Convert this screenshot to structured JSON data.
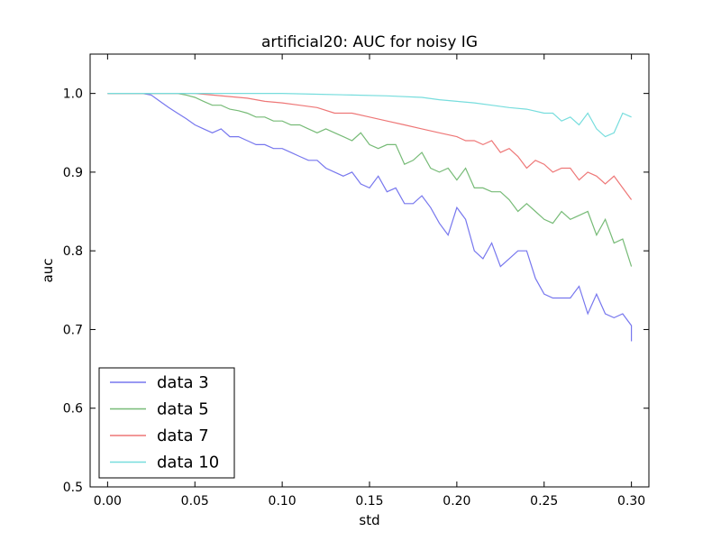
{
  "chart_data": {
    "type": "line",
    "title": "artificial20: AUC for noisy IG",
    "xlabel": "std",
    "ylabel": "auc",
    "xlim": [
      -0.01,
      0.31
    ],
    "ylim": [
      0.5,
      1.05
    ],
    "x_ticks": [
      0.0,
      0.05,
      0.1,
      0.15,
      0.2,
      0.25,
      0.3
    ],
    "x_tick_labels": [
      "0.00",
      "0.05",
      "0.10",
      "0.15",
      "0.20",
      "0.25",
      "0.30"
    ],
    "y_ticks": [
      0.5,
      0.6,
      0.7,
      0.8,
      0.9,
      1.0
    ],
    "y_tick_labels": [
      "0.5",
      "0.6",
      "0.7",
      "0.8",
      "0.9",
      "1.0"
    ],
    "grid": false,
    "legend_position": "lower-left",
    "series": [
      {
        "name": "data 3",
        "color": "#7777ee",
        "x": [
          0.0,
          0.01,
          0.02,
          0.025,
          0.03,
          0.035,
          0.04,
          0.045,
          0.05,
          0.055,
          0.06,
          0.065,
          0.07,
          0.075,
          0.08,
          0.085,
          0.09,
          0.095,
          0.1,
          0.105,
          0.11,
          0.115,
          0.12,
          0.125,
          0.13,
          0.135,
          0.14,
          0.145,
          0.15,
          0.155,
          0.16,
          0.165,
          0.17,
          0.175,
          0.18,
          0.185,
          0.19,
          0.195,
          0.2,
          0.205,
          0.21,
          0.215,
          0.22,
          0.225,
          0.23,
          0.235,
          0.24,
          0.245,
          0.25,
          0.255,
          0.26,
          0.265,
          0.27,
          0.275,
          0.28,
          0.285,
          0.29,
          0.295,
          0.3
        ],
        "y": [
          1.0,
          1.0,
          1.0,
          0.998,
          0.99,
          0.982,
          0.975,
          0.968,
          0.96,
          0.955,
          0.95,
          0.955,
          0.945,
          0.945,
          0.94,
          0.935,
          0.935,
          0.93,
          0.93,
          0.925,
          0.92,
          0.915,
          0.915,
          0.905,
          0.9,
          0.895,
          0.9,
          0.885,
          0.88,
          0.895,
          0.875,
          0.88,
          0.86,
          0.86,
          0.87,
          0.855,
          0.835,
          0.82,
          0.855,
          0.84,
          0.8,
          0.79,
          0.81,
          0.78,
          0.79,
          0.8,
          0.8,
          0.765,
          0.745,
          0.74,
          0.74,
          0.74,
          0.755,
          0.72,
          0.745,
          0.72,
          0.715,
          0.72,
          0.705
        ],
        "x_extra": [
          0.3
        ],
        "y_extra": [
          0.685
        ]
      },
      {
        "name": "data 5",
        "color": "#77bb77",
        "x": [
          0.0,
          0.01,
          0.02,
          0.03,
          0.04,
          0.045,
          0.05,
          0.055,
          0.06,
          0.065,
          0.07,
          0.075,
          0.08,
          0.085,
          0.09,
          0.095,
          0.1,
          0.105,
          0.11,
          0.115,
          0.12,
          0.125,
          0.13,
          0.135,
          0.14,
          0.145,
          0.15,
          0.155,
          0.16,
          0.165,
          0.17,
          0.175,
          0.18,
          0.185,
          0.19,
          0.195,
          0.2,
          0.205,
          0.21,
          0.215,
          0.22,
          0.225,
          0.23,
          0.235,
          0.24,
          0.245,
          0.25,
          0.255,
          0.26,
          0.265,
          0.27,
          0.275,
          0.28,
          0.285,
          0.29,
          0.295,
          0.3
        ],
        "y": [
          1.0,
          1.0,
          1.0,
          1.0,
          1.0,
          0.998,
          0.995,
          0.99,
          0.985,
          0.985,
          0.98,
          0.978,
          0.975,
          0.97,
          0.97,
          0.965,
          0.965,
          0.96,
          0.96,
          0.955,
          0.95,
          0.955,
          0.95,
          0.945,
          0.94,
          0.95,
          0.935,
          0.93,
          0.935,
          0.935,
          0.91,
          0.915,
          0.925,
          0.905,
          0.9,
          0.905,
          0.89,
          0.905,
          0.88,
          0.88,
          0.875,
          0.875,
          0.865,
          0.85,
          0.86,
          0.85,
          0.84,
          0.835,
          0.85,
          0.84,
          0.845,
          0.85,
          0.82,
          0.84,
          0.81,
          0.815,
          0.78
        ]
      },
      {
        "name": "data 7",
        "color": "#ee7777",
        "x": [
          0.0,
          0.01,
          0.02,
          0.03,
          0.04,
          0.05,
          0.055,
          0.06,
          0.07,
          0.08,
          0.09,
          0.1,
          0.11,
          0.12,
          0.13,
          0.14,
          0.15,
          0.16,
          0.17,
          0.18,
          0.19,
          0.2,
          0.205,
          0.21,
          0.215,
          0.22,
          0.225,
          0.23,
          0.235,
          0.24,
          0.245,
          0.25,
          0.255,
          0.26,
          0.265,
          0.27,
          0.275,
          0.28,
          0.285,
          0.29,
          0.295,
          0.3
        ],
        "y": [
          1.0,
          1.0,
          1.0,
          1.0,
          1.0,
          1.0,
          0.999,
          0.998,
          0.996,
          0.994,
          0.99,
          0.988,
          0.985,
          0.982,
          0.975,
          0.975,
          0.97,
          0.965,
          0.96,
          0.955,
          0.95,
          0.945,
          0.94,
          0.94,
          0.935,
          0.94,
          0.925,
          0.93,
          0.92,
          0.905,
          0.915,
          0.91,
          0.9,
          0.905,
          0.905,
          0.89,
          0.9,
          0.895,
          0.885,
          0.895,
          0.88,
          0.865
        ]
      },
      {
        "name": "data 10",
        "color": "#77dddd",
        "x": [
          0.0,
          0.02,
          0.04,
          0.06,
          0.08,
          0.1,
          0.12,
          0.14,
          0.16,
          0.18,
          0.19,
          0.2,
          0.21,
          0.22,
          0.23,
          0.24,
          0.25,
          0.255,
          0.26,
          0.265,
          0.27,
          0.275,
          0.28,
          0.285,
          0.29,
          0.295,
          0.3
        ],
        "y": [
          1.0,
          1.0,
          1.0,
          1.0,
          1.0,
          1.0,
          0.999,
          0.998,
          0.997,
          0.995,
          0.992,
          0.99,
          0.988,
          0.985,
          0.982,
          0.98,
          0.975,
          0.975,
          0.965,
          0.97,
          0.96,
          0.975,
          0.955,
          0.945,
          0.95,
          0.975,
          0.97
        ]
      }
    ]
  }
}
